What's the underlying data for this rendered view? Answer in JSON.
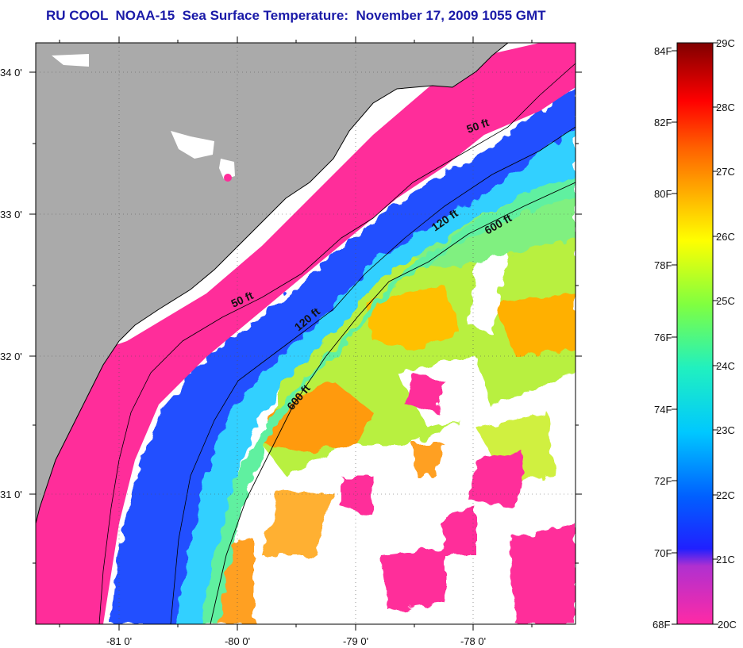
{
  "title": "RU COOL  NOAA-15  Sea Surface Temperature:  November 17, 2009 1055 GMT",
  "map": {
    "lat_ticks": [
      "34 0'",
      "33 0'",
      "32 0'",
      "31 0'"
    ],
    "lon_ticks": [
      "-81 0'",
      "-80 0'",
      "-79 0'",
      "-78 0'"
    ],
    "contour_labels": [
      "50 ft",
      "50 ft",
      "120 ft",
      "120 ft",
      "600 ft",
      "600 ft"
    ],
    "colors": {
      "land": "#aaaaaa",
      "cloud": "#ffffff",
      "cold_water": "#ff2d9a"
    }
  },
  "colorbar": {
    "fahrenheit_labels": [
      "84F",
      "82F",
      "80F",
      "78F",
      "76F",
      "74F",
      "72F",
      "70F",
      "68F"
    ],
    "celsius_labels": [
      "29C",
      "28C",
      "27C",
      "26C",
      "25C",
      "24C",
      "23C",
      "22C",
      "21C",
      "20C"
    ],
    "colors": [
      "#ff2aa5",
      "#8a2be2",
      "#0000ff",
      "#0080ff",
      "#00e5ff",
      "#40ff80",
      "#d0ff00",
      "#ffd000",
      "#ff8000",
      "#ff0000",
      "#800000"
    ]
  }
}
